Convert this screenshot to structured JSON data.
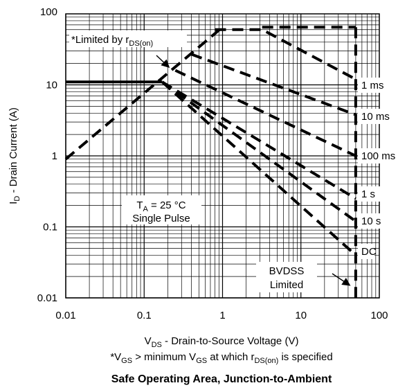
{
  "chart_data": {
    "type": "line",
    "title": "Safe Operating Area, Junction-to-Ambient",
    "xlabel": {
      "pre": "V",
      "sub": "DS",
      "post": " - Drain-to-Source Voltage (V)"
    },
    "ylabel": {
      "pre": "I",
      "sub": "D",
      "post": " - Drain Current (A)"
    },
    "footnote": {
      "p1": "*V",
      "s1": "GS",
      "p2": " > minimum V",
      "s2": "GS",
      "p3": " at which r",
      "s3": "DS(on)",
      "p4": " is specified"
    },
    "x_scale": "log",
    "y_scale": "log",
    "xlim": [
      0.01,
      100
    ],
    "ylim": [
      0.01,
      100
    ],
    "grid": true,
    "x_tick_labels": [
      "0.01",
      "0.1",
      "1",
      "10",
      "100"
    ],
    "y_tick_labels": [
      "0.01",
      "0.1",
      "1",
      "10",
      "100"
    ],
    "annotations": {
      "limited_by": {
        "pre": "*Limited by r",
        "sub": "DS(on)"
      },
      "conditions": {
        "pre": "T",
        "sub": "A",
        "post": " = 25 °C",
        "line2": "Single Pulse"
      },
      "bvdss_line1": "BVDSS",
      "bvdss_line2": "Limited"
    },
    "series": [
      {
        "name": "1 ms",
        "points": [
          [
            0.8,
            60
          ],
          [
            3.2,
            60
          ],
          [
            50,
            12
          ]
        ]
      },
      {
        "name": "10 ms",
        "points": [
          [
            0.4,
            27
          ],
          [
            50,
            3.8
          ]
        ]
      },
      {
        "name": "100 ms",
        "points": [
          [
            0.25,
            16
          ],
          [
            50,
            1.0
          ]
        ]
      },
      {
        "name": "1 s",
        "points": [
          [
            0.17,
            11
          ],
          [
            50,
            0.25
          ]
        ]
      },
      {
        "name": "10 s",
        "points": [
          [
            0.17,
            11
          ],
          [
            50,
            0.12
          ]
        ]
      },
      {
        "name": "DC",
        "points": [
          [
            0.17,
            11
          ],
          [
            50,
            0.04
          ]
        ]
      }
    ],
    "rds_on_limit": {
      "points": [
        [
          0.01,
          0.9
        ],
        [
          1.0,
          65
        ]
      ]
    },
    "bvdss_limit": {
      "points": [
        [
          50,
          65
        ],
        [
          50,
          0.01
        ]
      ]
    },
    "current_limit_60A": {
      "points": [
        [
          3.2,
          65
        ],
        [
          50,
          65
        ]
      ]
    },
    "solid_limit_11A": {
      "points": [
        [
          0.01,
          11
        ],
        [
          0.17,
          11
        ]
      ]
    }
  }
}
